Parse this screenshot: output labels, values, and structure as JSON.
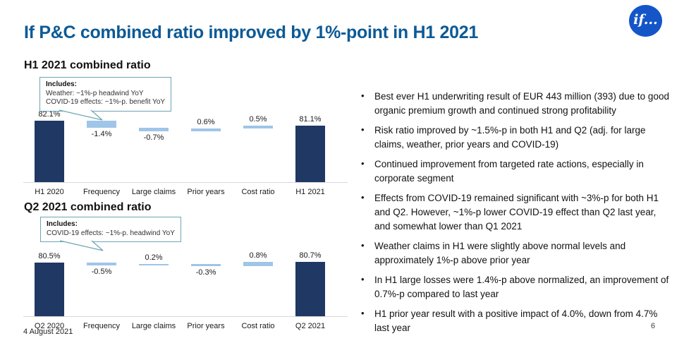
{
  "slide": {
    "title": "If P&C combined ratio improved by 1%-point in H1 2021",
    "logo": "if...",
    "footer_date": "4 August 2021",
    "page_number": "6"
  },
  "colors": {
    "title_blue": "#0C5A96",
    "bar_dark": "#1F3864",
    "bar_light": "#9FC5E8",
    "callout_border": "#6BA5B4",
    "logo_blue": "#1456C8",
    "baseline_gray": "#D8D8D8"
  },
  "chart_data": [
    {
      "type": "bar",
      "subtype": "waterfall",
      "title": "H1 2021 combined ratio",
      "categories": [
        "H1 2020",
        "Frequency",
        "Large claims",
        "Prior years",
        "Cost ratio",
        "H1 2021"
      ],
      "values": [
        82.1,
        -1.4,
        -0.7,
        0.6,
        0.5,
        81.1
      ],
      "labels": [
        "82.1%",
        "-1.4%",
        "-0.7%",
        "0.6%",
        "0.5%",
        "81.1%"
      ],
      "roles": [
        "total",
        "delta",
        "delta",
        "delta",
        "delta",
        "total"
      ],
      "axis_min": 70,
      "axis_max": 83,
      "grid": false,
      "legend": false,
      "callout": {
        "title": "Includes:",
        "lines": [
          "Weather: ~1%-p headwind YoY",
          "COVID-19 effects: ~1%-p. benefit YoY"
        ]
      }
    },
    {
      "type": "bar",
      "subtype": "waterfall",
      "title": "Q2 2021 combined ratio",
      "categories": [
        "Q2 2020",
        "Frequency",
        "Large claims",
        "Prior years",
        "Cost ratio",
        "Q2 2021"
      ],
      "values": [
        80.5,
        -0.5,
        0.2,
        -0.3,
        0.8,
        80.7
      ],
      "labels": [
        "80.5%",
        "-0.5%",
        "0.2%",
        "-0.3%",
        "0.8%",
        "80.7%"
      ],
      "roles": [
        "total",
        "delta",
        "delta",
        "delta",
        "delta",
        "total"
      ],
      "axis_min": 70,
      "axis_max": 83,
      "grid": false,
      "legend": false,
      "callout": {
        "title": "Includes:",
        "lines": [
          "COVID-19 effects: ~1%-p. headwind YoY"
        ]
      }
    }
  ],
  "bullets": [
    "Best ever H1 underwriting result of EUR 443 million (393) due to good organic premium growth and continued strong profitability",
    "Risk ratio improved by ~1.5%-p in both H1 and Q2 (adj. for large claims, weather, prior years and COVID-19)",
    "Continued improvement from targeted rate actions, especially in corporate segment",
    "Effects from COVID-19 remained significant with ~3%-p for both H1 and Q2. However, ~1%-p lower COVID-19 effect than Q2 last year, and somewhat lower than Q1 2021",
    "Weather claims in H1 were slightly above normal levels and approximately 1%-p above prior year",
    "In H1 large losses were 1.4%-p above normalized, an improvement of 0.7%-p compared to last year",
    "H1 prior year result with a positive impact of 4.0%, down from 4.7% last year"
  ]
}
